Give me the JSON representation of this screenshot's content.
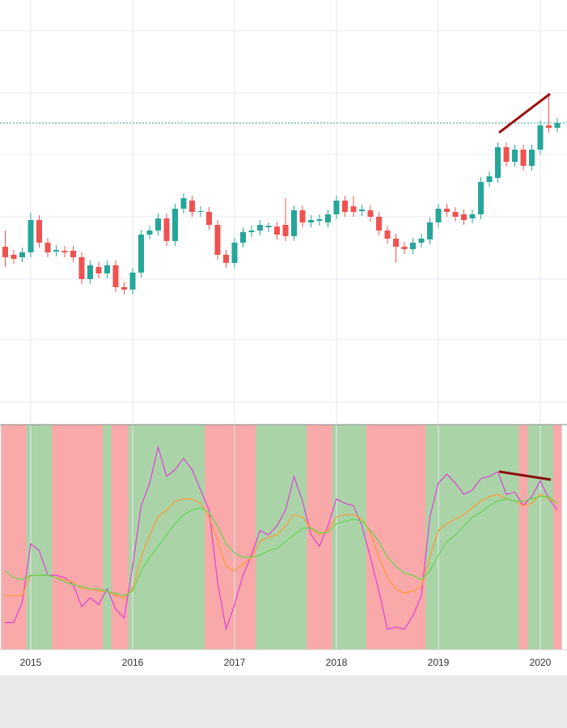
{
  "chart_data": [
    {
      "type": "candlestick",
      "categories": [
        null,
        null,
        null,
        "2015",
        null,
        null,
        null,
        null,
        null,
        null,
        null,
        null,
        null,
        null,
        null,
        "2016",
        null,
        null,
        null,
        null,
        null,
        null,
        null,
        null,
        null,
        null,
        null,
        "2017",
        null,
        null,
        null,
        null,
        null,
        null,
        null,
        null,
        null,
        null,
        null,
        "2018",
        null,
        null,
        null,
        null,
        null,
        null,
        null,
        null,
        null,
        null,
        null,
        "2019",
        null,
        null,
        null,
        null,
        null,
        null,
        null,
        null,
        null,
        null,
        null,
        "2020",
        null,
        null
      ],
      "open": [
        220,
        210,
        207,
        213,
        253,
        225,
        214,
        215,
        215,
        207,
        180,
        195,
        187,
        197,
        170,
        167,
        188,
        235,
        240,
        255,
        227,
        267,
        277,
        263,
        263,
        247,
        210,
        200,
        225,
        238,
        240,
        244,
        245,
        247,
        233,
        265,
        250,
        252,
        250,
        260,
        277,
        270,
        264,
        265,
        257,
        240,
        230,
        220,
        217,
        225,
        229,
        250,
        267,
        263,
        260,
        255,
        260,
        300,
        305,
        343,
        325,
        340,
        320,
        340,
        370,
        367
      ],
      "high": [
        240,
        216,
        219,
        262,
        259,
        231,
        222,
        221,
        221,
        213,
        203,
        201,
        203,
        203,
        176,
        194,
        241,
        246,
        261,
        261,
        273,
        286,
        283,
        270,
        269,
        253,
        216,
        231,
        244,
        246,
        253,
        250,
        251,
        280,
        271,
        271,
        259,
        260,
        266,
        283,
        283,
        283,
        272,
        271,
        263,
        246,
        236,
        226,
        231,
        236,
        256,
        273,
        273,
        269,
        266,
        266,
        306,
        313,
        349,
        349,
        346,
        346,
        346,
        376,
        407,
        379
      ],
      "low": [
        195,
        199,
        201,
        207,
        219,
        207,
        208,
        207,
        201,
        174,
        174,
        181,
        181,
        164,
        161,
        161,
        182,
        229,
        234,
        221,
        221,
        261,
        257,
        257,
        241,
        204,
        194,
        194,
        219,
        232,
        234,
        238,
        229,
        227,
        227,
        244,
        244,
        246,
        244,
        254,
        257,
        257,
        258,
        251,
        234,
        224,
        200,
        211,
        211,
        219,
        223,
        244,
        257,
        251,
        247,
        249,
        254,
        294,
        299,
        319,
        319,
        314,
        314,
        334,
        361,
        361
      ],
      "close": [
        207,
        205,
        213,
        253,
        225,
        213,
        216,
        213,
        207,
        180,
        197,
        187,
        197,
        170,
        167,
        188,
        235,
        240,
        255,
        227,
        267,
        280,
        263,
        264,
        247,
        210,
        200,
        225,
        238,
        240,
        247,
        246,
        235,
        233,
        265,
        250,
        253,
        254,
        260,
        277,
        263,
        263,
        266,
        257,
        240,
        230,
        220,
        217,
        225,
        230,
        250,
        267,
        263,
        257,
        253,
        260,
        300,
        307,
        343,
        325,
        340,
        320,
        340,
        370,
        367,
        373
      ],
      "ylim": [
        0,
        525
      ],
      "ygrid": [
        28,
        105,
        180,
        257,
        334,
        410,
        487
      ],
      "price_line": 373,
      "up_color": "#26a69a",
      "down_color": "#ef5350"
    },
    {
      "type": "line",
      "ylim": [
        0,
        100
      ],
      "regime": [
        0,
        0,
        0,
        1,
        1,
        1,
        0,
        0,
        0,
        0,
        0,
        0,
        1,
        0,
        0,
        1,
        1,
        1,
        1,
        1,
        1,
        1,
        1,
        1,
        0,
        0,
        0,
        0,
        0,
        0,
        1,
        1,
        1,
        1,
        1,
        1,
        0,
        0,
        0,
        1,
        1,
        1,
        1,
        0,
        0,
        0,
        0,
        0,
        0,
        0,
        1,
        1,
        1,
        1,
        1,
        1,
        1,
        1,
        1,
        1,
        1,
        0,
        1,
        1,
        1,
        0
      ],
      "regime_colors": [
        "#f9a9a9",
        "#aad3a8"
      ],
      "series": [
        {
          "color": "#e040d8",
          "values": [
            12,
            12,
            21,
            47,
            44,
            33,
            33,
            32,
            29,
            19,
            23,
            20,
            27,
            18,
            14,
            37,
            64,
            74,
            90,
            77,
            80,
            85,
            80,
            71,
            62,
            30,
            9,
            20,
            33,
            42,
            53,
            51,
            55,
            62,
            77,
            66,
            51,
            46,
            55,
            67,
            65,
            64,
            55,
            41,
            26,
            9,
            10,
            9,
            15,
            24,
            59,
            74,
            78,
            74,
            69,
            71,
            76,
            77,
            79,
            69,
            70,
            64,
            68,
            75,
            67,
            62
          ]
        },
        {
          "color": "#ff9a2e",
          "values": [
            24,
            24,
            24,
            33,
            33,
            33,
            32,
            31,
            30,
            27,
            27,
            26,
            26,
            24,
            23,
            27,
            41,
            51,
            59,
            62,
            66,
            67,
            67,
            65,
            59,
            48,
            37,
            35,
            38,
            41,
            48,
            50,
            51,
            55,
            60,
            59,
            54,
            51,
            53,
            59,
            60,
            60,
            58,
            52,
            41,
            32,
            27,
            25,
            26,
            28,
            41,
            53,
            56,
            58,
            60,
            63,
            66,
            68,
            69,
            67,
            66,
            64,
            65,
            69,
            67,
            65
          ]
        },
        {
          "color": "#5fd84a",
          "values": [
            35,
            32,
            31,
            33,
            33,
            33,
            32,
            30,
            29,
            28,
            27,
            27,
            26,
            25,
            24,
            26,
            35,
            41,
            46,
            51,
            56,
            60,
            62,
            63,
            61,
            55,
            47,
            43,
            41,
            41,
            42,
            44,
            45,
            48,
            51,
            54,
            54,
            52,
            52,
            56,
            57,
            58,
            57,
            53,
            48,
            41,
            37,
            34,
            33,
            31,
            35,
            42,
            48,
            51,
            55,
            59,
            61,
            64,
            66,
            67,
            66,
            66,
            67,
            68,
            68,
            65
          ]
        }
      ]
    }
  ]
}
